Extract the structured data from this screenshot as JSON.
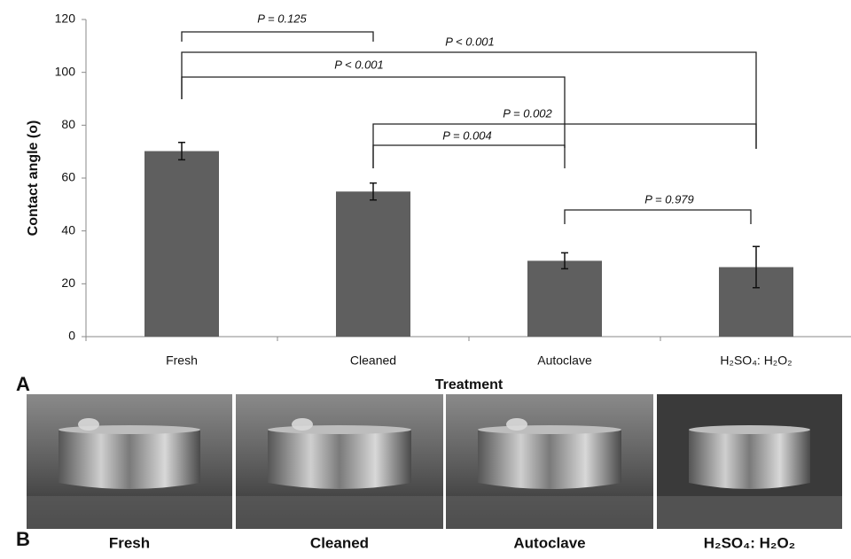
{
  "chart_data": {
    "type": "bar",
    "ylabel": "Contact angle (o)",
    "xlabel": "Treatment",
    "categories": [
      "Fresh",
      "Cleaned",
      "Autoclave",
      "H₂SO₄: H₂O₂"
    ],
    "values": [
      70.2,
      54.9,
      28.7,
      26.3
    ],
    "errors": [
      3.3,
      3.2,
      3.0,
      7.8
    ],
    "color": "#5f5f5f",
    "ylim": [
      0,
      120
    ],
    "yticks": [
      0,
      20,
      40,
      60,
      80,
      100,
      120
    ],
    "annotations": [
      "P = 0.125",
      "P < 0.001",
      "P < 0.001",
      "P = 0.002",
      "P = 0.004",
      "P = 0.979"
    ]
  },
  "panel_a": {
    "label": "A"
  },
  "panel_b": {
    "label": "B",
    "captions": [
      "Fresh",
      "Cleaned",
      "Autoclave",
      "H₂SO₄: H₂O₂"
    ]
  }
}
